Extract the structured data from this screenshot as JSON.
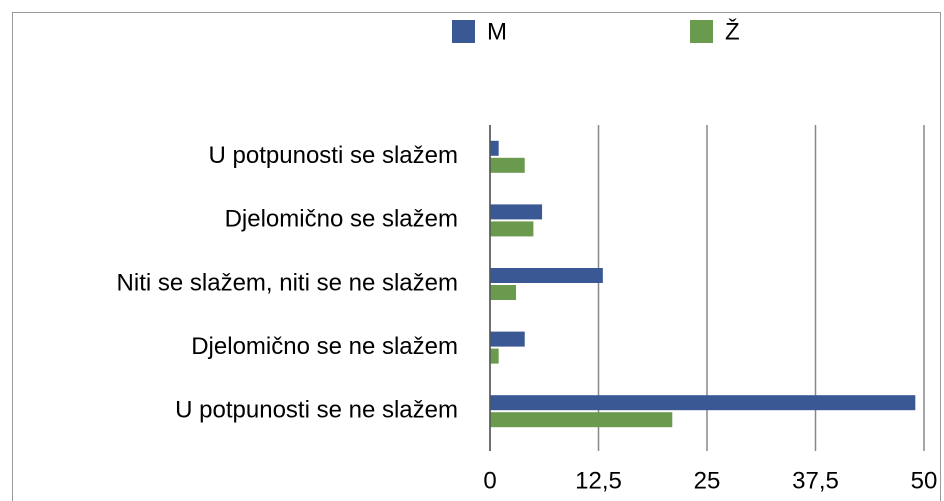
{
  "chart_data": {
    "type": "hbar",
    "categories": [
      "U potpunosti se slažem",
      "Djelomično se slažem",
      "Niti se slažem, niti se ne slažem",
      "Djelomično se ne slažem",
      "U potpunosti se ne slažem"
    ],
    "series": [
      {
        "name": "M",
        "color": "#3a5894",
        "values": [
          1,
          6,
          13,
          4,
          49
        ]
      },
      {
        "name": "Ž",
        "color": "#6a9a4e",
        "values": [
          4,
          5,
          3,
          1,
          21
        ]
      }
    ],
    "xlim": [
      0,
      50
    ],
    "xticks": [
      0,
      {
        "value": 12.5,
        "label": "12,5"
      },
      25,
      {
        "value": 37.5,
        "label": "37,5"
      },
      50
    ],
    "grid": true,
    "legend": "top"
  }
}
